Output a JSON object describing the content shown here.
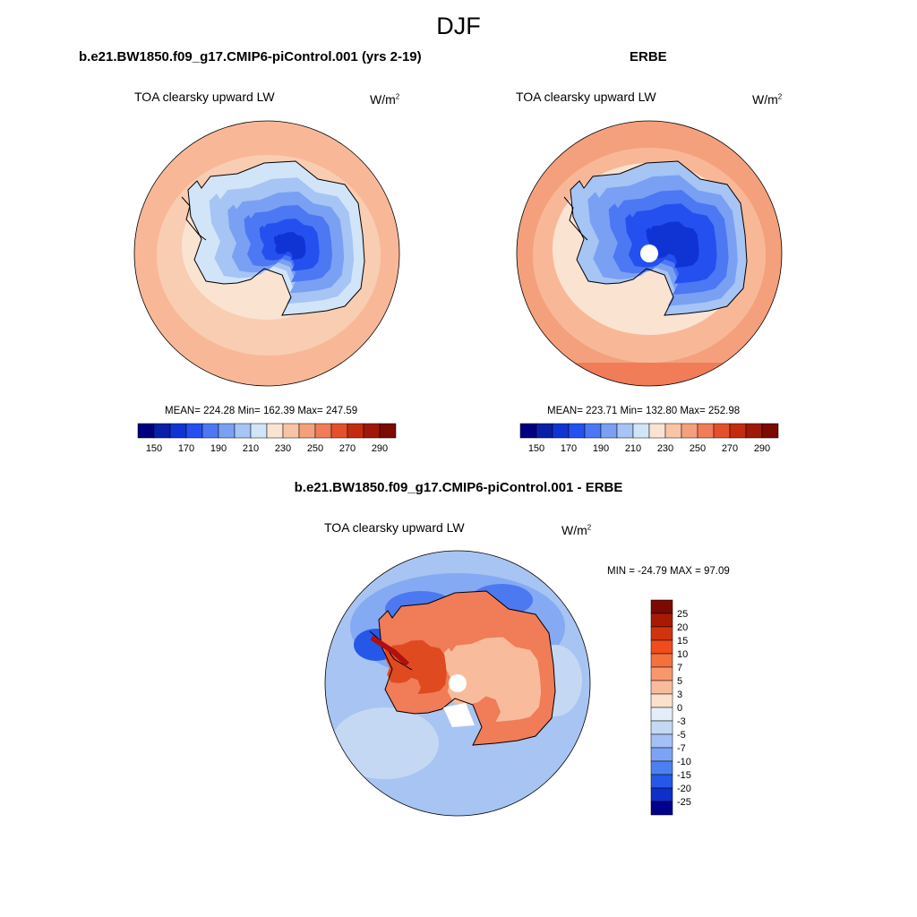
{
  "figure": {
    "title": "DJF",
    "panels": [
      {
        "id": "model",
        "title": "b.e21.BW1850.f09_g17.CMIP6-piControl.001 (yrs 2-19)",
        "variable": "TOA clearsky upward LW",
        "units": "W/m",
        "units_exp": "2",
        "stats": {
          "mean": "224.28",
          "min": "162.39",
          "max": "247.59"
        },
        "stats_text": "MEAN= 224.28  Min= 162.39  Max= 247.59",
        "colorbar": {
          "orientation": "horizontal",
          "ticks": [
            "150",
            "170",
            "190",
            "210",
            "230",
            "250",
            "270",
            "290"
          ],
          "colors": [
            "#00007f",
            "#0a1fa8",
            "#1034d4",
            "#2450f0",
            "#4c78f4",
            "#7aa0f4",
            "#a6c4f4",
            "#d2e4f8",
            "#fbe3d2",
            "#f8c4a4",
            "#f4a07c",
            "#f07c58",
            "#e4502c",
            "#c42c10",
            "#a01808",
            "#7a0a02"
          ]
        }
      },
      {
        "id": "obs",
        "title": "ERBE",
        "variable": "TOA clearsky upward LW",
        "units": "W/m",
        "units_exp": "2",
        "stats": {
          "mean": "223.71",
          "min": "132.80",
          "max": "252.98"
        },
        "stats_text": "MEAN= 223.71  Min= 132.80  Max= 252.98",
        "colorbar": {
          "orientation": "horizontal",
          "ticks": [
            "150",
            "170",
            "190",
            "210",
            "230",
            "250",
            "270",
            "290"
          ],
          "colors": [
            "#00007f",
            "#0a1fa8",
            "#1034d4",
            "#2450f0",
            "#4c78f4",
            "#7aa0f4",
            "#a6c4f4",
            "#d2e4f8",
            "#fbe3d2",
            "#f8c4a4",
            "#f4a07c",
            "#f07c58",
            "#e4502c",
            "#c42c10",
            "#a01808",
            "#7a0a02"
          ]
        }
      },
      {
        "id": "diff",
        "title": "b.e21.BW1850.f09_g17.CMIP6-piControl.001 - ERBE",
        "variable": "TOA clearsky upward LW",
        "units": "W/m",
        "units_exp": "2",
        "stats": {
          "min": "-24.79",
          "max": "97.09"
        },
        "stats_text": "MIN = -24.79 MAX =  97.09",
        "colorbar": {
          "orientation": "vertical",
          "ticks": [
            "25",
            "20",
            "15",
            "10",
            "7",
            "5",
            "3",
            "0",
            "-3",
            "-5",
            "-7",
            "-10",
            "-15",
            "-20",
            "-25"
          ],
          "colors": [
            "#7a0a02",
            "#a81a04",
            "#d0340e",
            "#f04c1c",
            "#f4703c",
            "#f8966c",
            "#f8bc9c",
            "#fbe0cc",
            "#e4eef8",
            "#c4d8f4",
            "#a4c0f4",
            "#7ca4f4",
            "#4c80f0",
            "#2658e8",
            "#0c30c8",
            "#00008a"
          ]
        }
      }
    ],
    "map_colors": {
      "ocean_warm": "#f8b898",
      "ocean_mid": "#f9cdb2",
      "ocean_cool": "#fbe3d2",
      "ice_light": "#d2e4f8",
      "ice_mid": "#7aa0f4",
      "ice_deep": "#2450f0",
      "ice_core": "#1034d4",
      "diff_ocean": "#a8c4f2",
      "diff_ocean_deep": "#4c78f0",
      "diff_land": "#f07c58",
      "diff_land_hot": "#e04a20"
    }
  }
}
